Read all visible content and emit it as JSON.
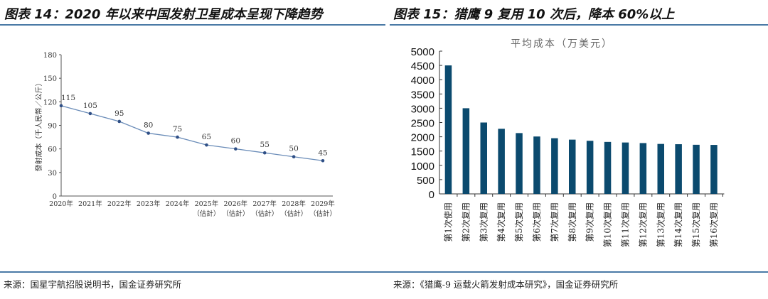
{
  "left": {
    "header": "图表 14：2020 年以来中国发射卫星成本呈现下降趋势",
    "source": "来源：国星宇航招股说明书，国金证券研究所"
  },
  "right": {
    "header": "图表 15：猎鹰 9 复用 10 次后，降本 60%以上",
    "source": "来源：《猎鹰-9 运载火箭发射成本研究》，国金证券研究所"
  },
  "chart_data": [
    {
      "type": "line",
      "title": "",
      "ylabel": "發射成本（千人民幣／公斤）",
      "xlabel": "",
      "categories": [
        "2020年",
        "2021年",
        "2022年",
        "2023年",
        "2024年",
        "2025年\n(估計)",
        "2026年\n(估計)",
        "2027年\n(估計)",
        "2028年\n(估計)",
        "2029年\n(估計)"
      ],
      "values": [
        115,
        105,
        95,
        80,
        75,
        65,
        60,
        55,
        50,
        45
      ],
      "data_labels": [
        "115",
        "105",
        "95",
        "80",
        "75",
        "65",
        "60",
        "55",
        "50",
        "45"
      ],
      "ylim": [
        0,
        180
      ],
      "yticks": [
        0,
        30,
        60,
        90,
        120,
        150,
        180
      ],
      "grid": false,
      "color": "#6a8cb8",
      "marker_color": "#2f4f86"
    },
    {
      "type": "bar",
      "title": "平均成本（万美元）",
      "xlabel": "",
      "ylabel": "",
      "categories": [
        "第1次使用",
        "第2次复用",
        "第3次复用",
        "第4次复用",
        "第5次复用",
        "第6次复用",
        "第7次复用",
        "第8次复用",
        "第9次复用",
        "第10次复用",
        "第11次复用",
        "第12次复用",
        "第13次复用",
        "第14次复用",
        "第15次复用",
        "第16次复用"
      ],
      "values": [
        4500,
        3000,
        2500,
        2280,
        2130,
        2010,
        1950,
        1900,
        1860,
        1820,
        1800,
        1780,
        1750,
        1740,
        1720,
        1715
      ],
      "ylim": [
        0,
        5000
      ],
      "yticks": [
        0,
        500,
        1000,
        1500,
        2000,
        2500,
        3000,
        3500,
        4000,
        4500,
        5000
      ],
      "grid": false,
      "color": "#0b4a6e"
    }
  ]
}
